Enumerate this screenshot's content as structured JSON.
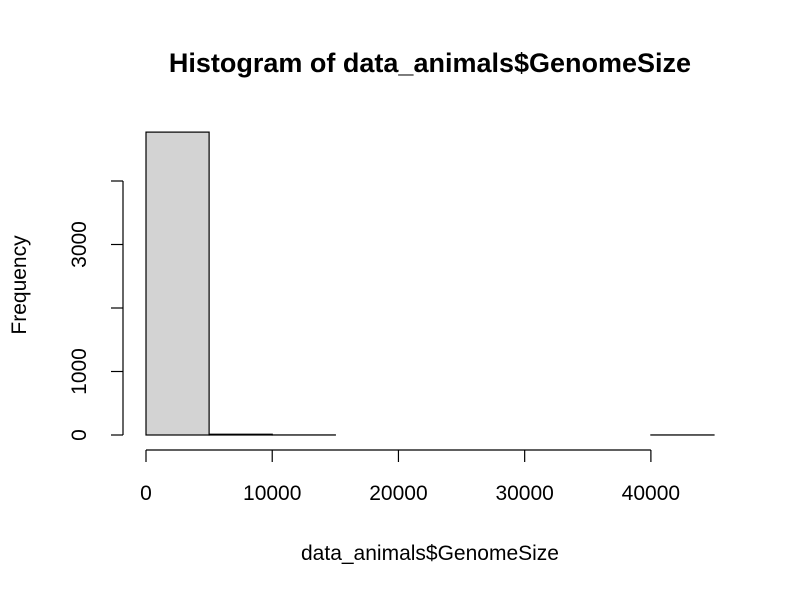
{
  "chart_data": {
    "type": "bar",
    "title": "Histogram of data_animals$GenomeSize",
    "xlabel": "data_animals$GenomeSize",
    "ylabel": "Frequency",
    "bin_edges": [
      0,
      5000,
      10000,
      15000,
      20000,
      25000,
      30000,
      35000,
      40000,
      45000
    ],
    "categories": [
      "0-5000",
      "5000-10000",
      "10000-15000",
      "15000-20000",
      "20000-25000",
      "25000-30000",
      "30000-35000",
      "35000-40000",
      "40000-45000"
    ],
    "values": [
      4770,
      12,
      1,
      0,
      0,
      0,
      0,
      0,
      1
    ],
    "xlim": [
      0,
      45000
    ],
    "ylim": [
      0,
      4800
    ],
    "x_ticks": [
      0,
      10000,
      20000,
      30000,
      40000
    ],
    "x_tick_labels": [
      "0",
      "10000",
      "20000",
      "30000",
      "40000"
    ],
    "y_ticks": [
      0,
      1000,
      2000,
      3000,
      4000
    ],
    "y_tick_labels": [
      "0",
      "1000",
      "",
      "3000",
      ""
    ],
    "bar_fill": "#d3d3d3",
    "bar_stroke": "#000000",
    "grid": false,
    "legend": "none"
  }
}
